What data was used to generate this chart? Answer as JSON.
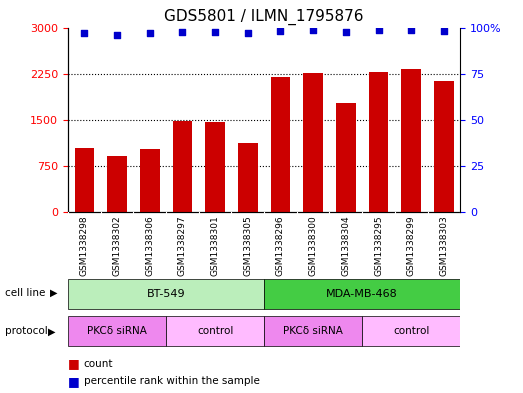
{
  "title": "GDS5801 / ILMN_1795876",
  "samples": [
    "GSM1338298",
    "GSM1338302",
    "GSM1338306",
    "GSM1338297",
    "GSM1338301",
    "GSM1338305",
    "GSM1338296",
    "GSM1338300",
    "GSM1338304",
    "GSM1338295",
    "GSM1338299",
    "GSM1338303"
  ],
  "counts": [
    1050,
    920,
    1020,
    1480,
    1470,
    1130,
    2190,
    2260,
    1780,
    2270,
    2320,
    2130
  ],
  "percentiles": [
    97,
    96,
    97,
    97.5,
    97.5,
    97,
    98,
    98.5,
    97.5,
    98.5,
    98.5,
    98
  ],
  "bar_color": "#cc0000",
  "dot_color": "#0000cc",
  "ylim_left": [
    0,
    3000
  ],
  "ylim_right": [
    0,
    100
  ],
  "yticks_left": [
    0,
    750,
    1500,
    2250,
    3000
  ],
  "yticks_right": [
    0,
    25,
    50,
    75,
    100
  ],
  "ytick_labels_right": [
    "0",
    "25",
    "50",
    "75",
    "100%"
  ],
  "cell_line_groups": [
    {
      "label": "BT-549",
      "start": 0,
      "end": 6,
      "color": "#bbeebb"
    },
    {
      "label": "MDA-MB-468",
      "start": 6,
      "end": 12,
      "color": "#44cc44"
    }
  ],
  "protocol_groups": [
    {
      "label": "PKCδ siRNA",
      "start": 0,
      "end": 3,
      "color": "#ee88ee"
    },
    {
      "label": "control",
      "start": 3,
      "end": 6,
      "color": "#ffbbff"
    },
    {
      "label": "PKCδ siRNA",
      "start": 6,
      "end": 9,
      "color": "#ee88ee"
    },
    {
      "label": "control",
      "start": 9,
      "end": 12,
      "color": "#ffbbff"
    }
  ],
  "title_fontsize": 11,
  "tick_fontsize": 8,
  "sample_label_fontsize": 6.5,
  "legend_count_color": "#cc0000",
  "legend_dot_color": "#0000cc",
  "sample_bg_color": "#cccccc",
  "bar_area_bg": "#ffffff"
}
